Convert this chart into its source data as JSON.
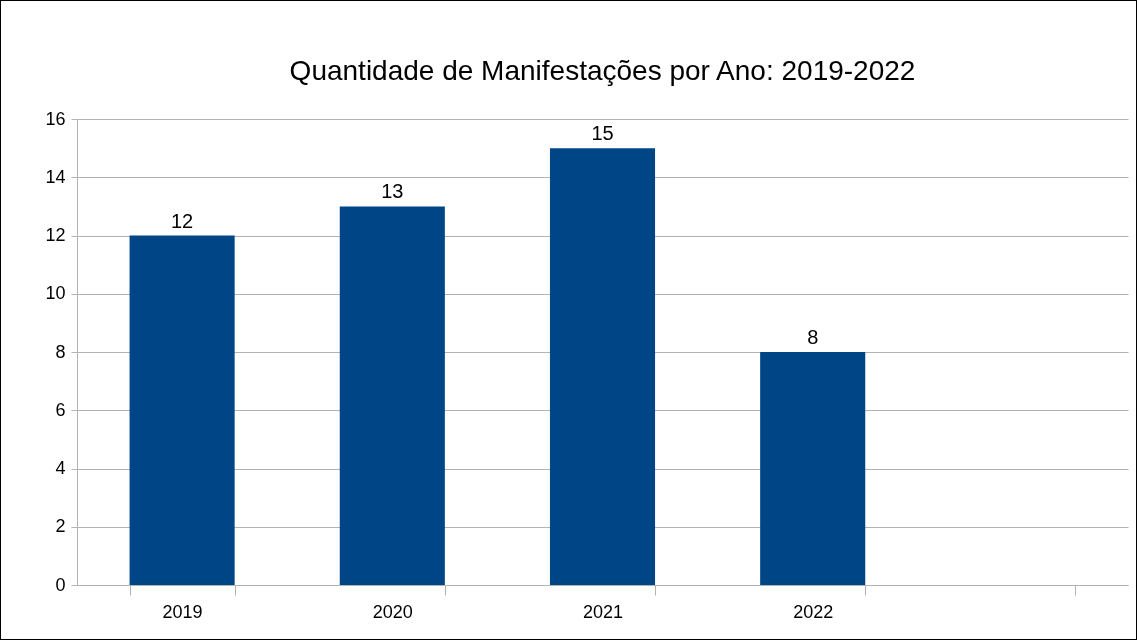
{
  "chart_data": {
    "type": "bar",
    "title": "Quantidade de Manifestações por Ano: 2019-2022",
    "categories": [
      "2019",
      "2020",
      "2021",
      "2022",
      null
    ],
    "values": [
      12,
      13,
      15,
      8,
      null
    ],
    "color": "#004586",
    "ylim": [
      0,
      16
    ],
    "yticks": [
      0,
      2,
      4,
      6,
      8,
      10,
      12,
      14,
      16
    ],
    "grid": "y",
    "data_labels": true
  }
}
